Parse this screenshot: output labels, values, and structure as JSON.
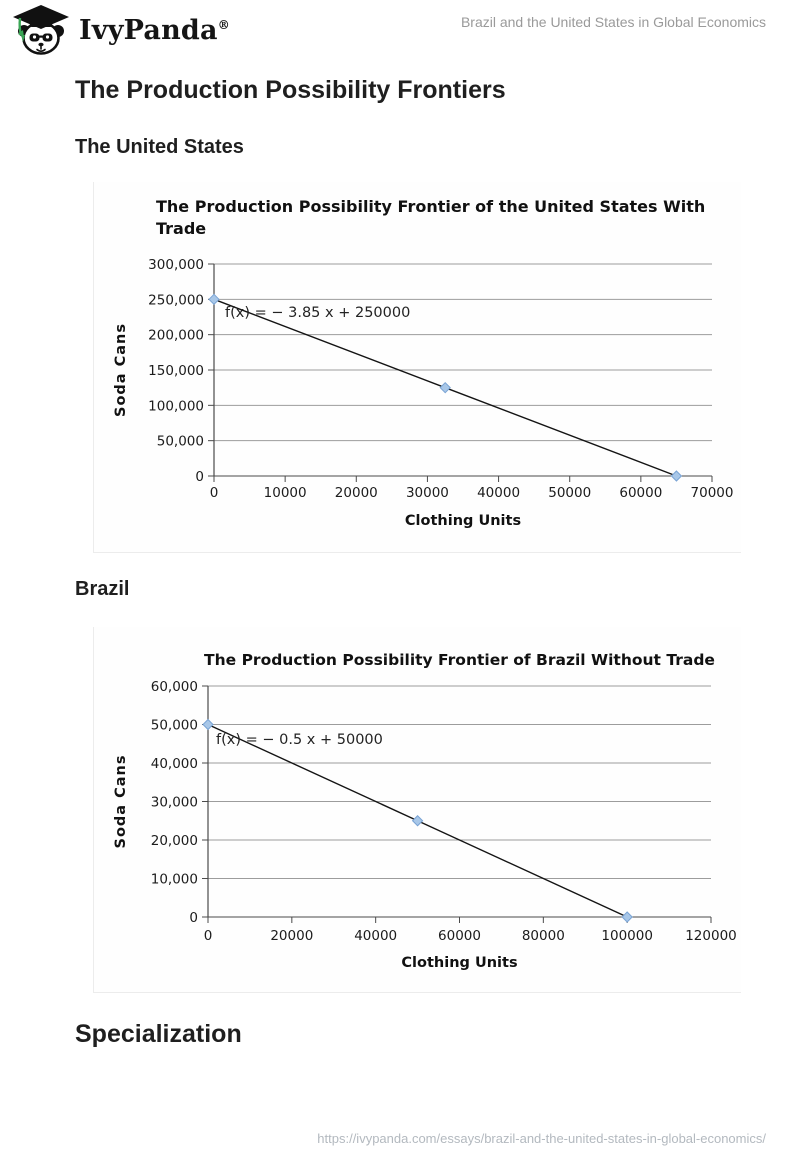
{
  "header": {
    "brand": "IvyPanda",
    "brand_mark": "®",
    "doc_title": "Brazil and the United States in Global Economics"
  },
  "headings": {
    "main": "The Production Possibility Frontiers",
    "united_states": "The United States",
    "brazil": "Brazil",
    "specialization": "Specialization"
  },
  "footer": {
    "url": "https://ivypanda.com/essays/brazil-and-the-united-states-in-global-economics/"
  },
  "colors": {
    "line": "#141414",
    "grid": "#9c9c9c",
    "axis": "#4a4a4a",
    "marker_fill": "#a8c7e8",
    "marker_edge": "#79a3d4",
    "tassel_green": "#3aa655"
  },
  "chart_data": [
    {
      "type": "line",
      "title": "The Production Possibility Frontier of the United States With Trade",
      "title_lines": [
        "The Production Possibility Frontier of the United States With",
        "Trade"
      ],
      "title_align": "left",
      "xlabel": "Clothing Units",
      "ylabel": "Soda Cans",
      "annotation": "f(x) = − 3.85 x + 250000",
      "x": [
        0,
        32500,
        65000
      ],
      "y": [
        250000,
        125000,
        0
      ],
      "xlim": [
        0,
        70000
      ],
      "ylim": [
        0,
        300000
      ],
      "xticks": [
        0,
        10000,
        20000,
        30000,
        40000,
        50000,
        60000,
        70000
      ],
      "yticks": [
        0,
        50000,
        100000,
        150000,
        200000,
        250000,
        300000
      ],
      "xtick_labels": [
        "0",
        "10000",
        "20000",
        "30000",
        "40000",
        "50000",
        "60000",
        "70000"
      ],
      "ytick_labels": [
        "0",
        "50,000",
        "100,000",
        "150,000",
        "200,000",
        "250,000",
        "300,000"
      ],
      "grid": true,
      "legend": false
    },
    {
      "type": "line",
      "title": "The Production Possibility Frontier of Brazil Without Trade",
      "title_lines": [
        "The Production Possibility Frontier of Brazil Without Trade"
      ],
      "title_align": "center",
      "xlabel": "Clothing Units",
      "ylabel": "Soda Cans",
      "annotation": "f(x) = − 0.5 x + 50000",
      "x": [
        0,
        50000,
        100000
      ],
      "y": [
        50000,
        25000,
        0
      ],
      "xlim": [
        0,
        120000
      ],
      "ylim": [
        0,
        60000
      ],
      "xticks": [
        0,
        20000,
        40000,
        60000,
        80000,
        100000,
        120000
      ],
      "yticks": [
        0,
        10000,
        20000,
        30000,
        40000,
        50000,
        60000
      ],
      "xtick_labels": [
        "0",
        "20000",
        "40000",
        "60000",
        "80000",
        "100000",
        "120000"
      ],
      "ytick_labels": [
        "0",
        "10,000",
        "20,000",
        "30,000",
        "40,000",
        "50,000",
        "60,000"
      ],
      "grid": true,
      "legend": false
    }
  ]
}
